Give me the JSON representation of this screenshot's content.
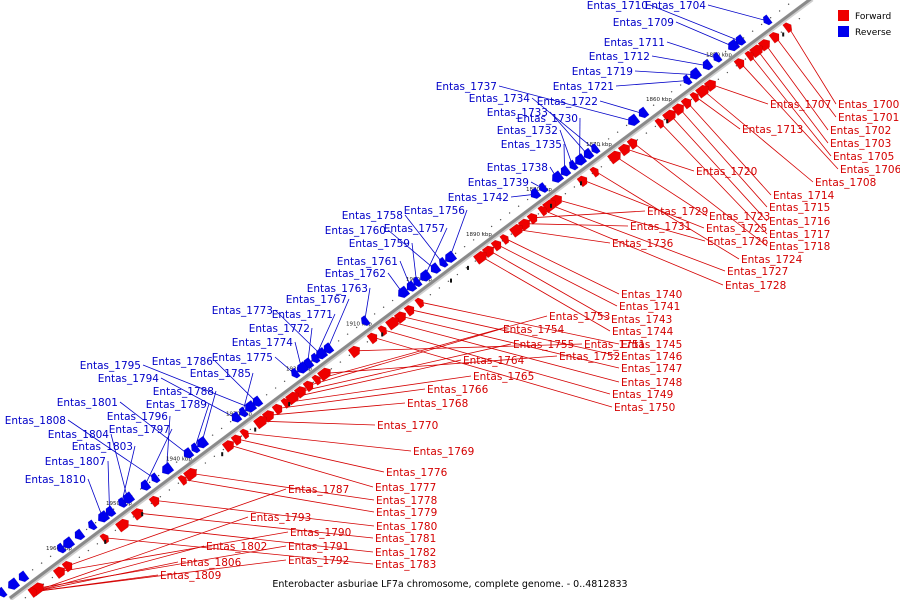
{
  "caption": "Enterobacter asburiae LF7a chromosome, complete genome. - 0..4812833",
  "legend": [
    {
      "label": "Forward",
      "color": "#ee0000"
    },
    {
      "label": "Reverse",
      "color": "#0000ee"
    }
  ],
  "colors": {
    "forward": "#ee0000",
    "reverse": "#0000ee",
    "backbone": "#8a8a8a",
    "label_forward": "#d40000",
    "label_reverse": "#0000c8"
  },
  "scale_marks": [
    "1850 kbp",
    "1860 kbp",
    "1870 kbp",
    "1880 kbp",
    "1890 kbp",
    "1900 kbp",
    "1910 kbp",
    "1920 kbp",
    "1930 kbp",
    "1940 kbp",
    "1950 kbp",
    "1960 kbp"
  ],
  "forward_genes": [
    "Entas_1700",
    "Entas_1701",
    "Entas_1702",
    "Entas_1703",
    "Entas_1705",
    "Entas_1706",
    "Entas_1707",
    "Entas_1708",
    "Entas_1713",
    "Entas_1714",
    "Entas_1715",
    "Entas_1716",
    "Entas_1717",
    "Entas_1718",
    "Entas_1720",
    "Entas_1723",
    "Entas_1724",
    "Entas_1725",
    "Entas_1726",
    "Entas_1727",
    "Entas_1728",
    "Entas_1729",
    "Entas_1731",
    "Entas_1736",
    "Entas_1740",
    "Entas_1741",
    "Entas_1743",
    "Entas_1744",
    "Entas_1745",
    "Entas_1746",
    "Entas_1747",
    "Entas_1748",
    "Entas_1749",
    "Entas_1750",
    "Entas_1751",
    "Entas_1752",
    "Entas_1753",
    "Entas_1754",
    "Entas_1755",
    "Entas_1764",
    "Entas_1765",
    "Entas_1766",
    "Entas_1768",
    "Entas_1769",
    "Entas_1770",
    "Entas_1776",
    "Entas_1777",
    "Entas_1778",
    "Entas_1779",
    "Entas_1780",
    "Entas_1781",
    "Entas_1782",
    "Entas_1783",
    "Entas_1787",
    "Entas_1790",
    "Entas_1791",
    "Entas_1792",
    "Entas_1793",
    "Entas_1802",
    "Entas_1806",
    "Entas_1809"
  ],
  "reverse_genes": [
    "Entas_1704",
    "Entas_1709",
    "Entas_1710",
    "Entas_1711",
    "Entas_1712",
    "Entas_1719",
    "Entas_1721",
    "Entas_1722",
    "Entas_1730",
    "Entas_1732",
    "Entas_1733",
    "Entas_1734",
    "Entas_1735",
    "Entas_1737",
    "Entas_1738",
    "Entas_1739",
    "Entas_1742",
    "Entas_1756",
    "Entas_1757",
    "Entas_1758",
    "Entas_1759",
    "Entas_1760",
    "Entas_1761",
    "Entas_1762",
    "Entas_1763",
    "Entas_1767",
    "Entas_1771",
    "Entas_1772",
    "Entas_1773",
    "Entas_1774",
    "Entas_1775",
    "Entas_1785",
    "Entas_1786",
    "Entas_1788",
    "Entas_1789",
    "Entas_1794",
    "Entas_1795",
    "Entas_1796",
    "Entas_1797",
    "Entas_1801",
    "Entas_1803",
    "Entas_1804",
    "Entas_1807",
    "Entas_1808",
    "Entas_1810"
  ]
}
